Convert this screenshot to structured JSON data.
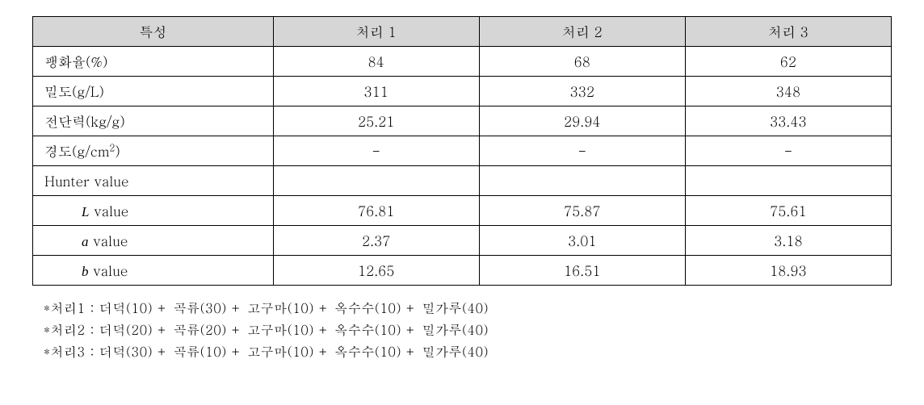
{
  "table": {
    "headers": [
      "특성",
      "처리 1",
      "처리 2",
      "처리 3"
    ],
    "rows": [
      {
        "label": "팽화율(%)",
        "sup": "",
        "italic": false,
        "indent": false,
        "vals": [
          "84",
          "68",
          "62"
        ]
      },
      {
        "label": "밀도(g/L)",
        "sup": "",
        "italic": false,
        "indent": false,
        "vals": [
          "311",
          "332",
          "348"
        ]
      },
      {
        "label": "전단력(kg/g)",
        "sup": "",
        "italic": false,
        "indent": false,
        "vals": [
          "25.21",
          "29.94",
          "33.43"
        ]
      },
      {
        "label": "경도(g/cm",
        "sup": "2",
        "sup_after": ")",
        "italic": false,
        "indent": false,
        "vals": [
          "-",
          "-",
          "-"
        ]
      },
      {
        "label": "Hunter value",
        "sup": "",
        "italic": false,
        "indent": false,
        "vals": [
          "",
          "",
          ""
        ]
      },
      {
        "label_i": "L",
        "label_rest": " value",
        "sup": "",
        "italic": true,
        "indent": true,
        "vals": [
          "76.81",
          "75.87",
          "75.61"
        ]
      },
      {
        "label_i": "a",
        "label_rest": " value",
        "sup": "",
        "italic": true,
        "indent": true,
        "vals": [
          "2.37",
          "3.01",
          "3.18"
        ]
      },
      {
        "label_i": "b",
        "label_rest": " value",
        "sup": "",
        "italic": true,
        "indent": true,
        "vals": [
          "12.65",
          "16.51",
          "18.93"
        ]
      }
    ]
  },
  "notes": [
    "*처리1 : 더덕(10) + 곡류(30) + 고구마(10) + 옥수수(10) + 밀가루(40)",
    "*처리2 : 더덕(20) + 곡류(20) + 고구마(10) + 옥수수(10) + 밀가루(40)",
    "*처리3 : 더덕(30) + 곡류(10) + 고구마(10) + 옥수수(10) + 밀가루(40)"
  ]
}
